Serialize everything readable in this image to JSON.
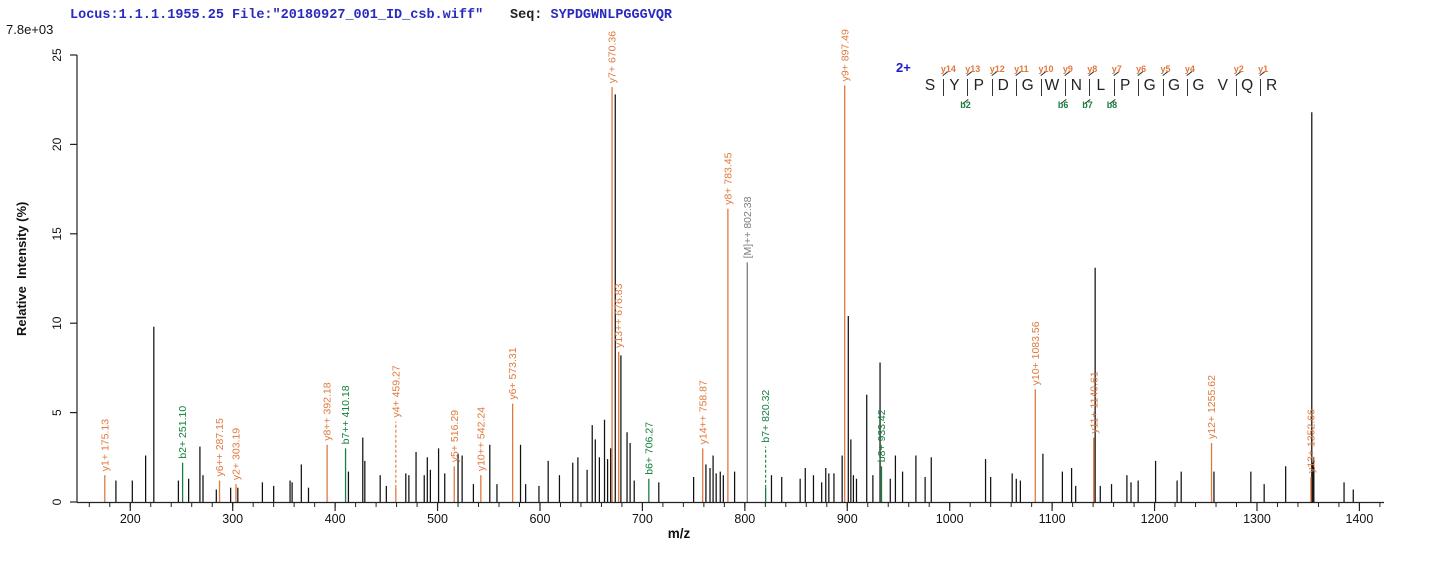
{
  "header": {
    "locus_file": "Locus:1.1.1.1955.25 File:\"20180927_001_ID_csb.wiff\"",
    "seq_label": "Seq: ",
    "seq_value": "SYPDGWNLPGGGVQR",
    "base_peak_intensity": "7.8e+03"
  },
  "peptide": {
    "charge_label": "2+",
    "residues": [
      "S",
      "Y",
      "P",
      "D",
      "G",
      "W",
      "N",
      "L",
      "P",
      "G",
      "G",
      "G",
      "V",
      "Q",
      "R"
    ],
    "gaps": [
      {
        "y": "y14",
        "b": null
      },
      {
        "y": "y13",
        "b": "b2"
      },
      {
        "y": "y12",
        "b": null
      },
      {
        "y": "y11",
        "b": null
      },
      {
        "y": "y10",
        "b": null
      },
      {
        "y": "y9",
        "b": "b6"
      },
      {
        "y": "y8",
        "b": "b7"
      },
      {
        "y": "y7",
        "b": "b8"
      },
      {
        "y": "y6",
        "b": null
      },
      {
        "y": "y5",
        "b": null
      },
      {
        "y": "y4",
        "b": null
      },
      {
        "y": null,
        "b": null
      },
      {
        "y": "y2",
        "b": null
      },
      {
        "y": "y1",
        "b": null
      }
    ]
  },
  "chart_data": {
    "type": "bar",
    "xlabel": "m/z",
    "ylabel": "Relative  Intensity (%)",
    "xlim": [
      148,
      1424
    ],
    "ylim": [
      0,
      25
    ],
    "x_major_ticks": [
      200,
      300,
      400,
      500,
      600,
      700,
      800,
      900,
      1000,
      1100,
      1200,
      1300,
      1400
    ],
    "x_minor_tick_step": 20,
    "y_ticks": [
      0,
      5,
      10,
      15,
      20,
      25
    ],
    "grid": false,
    "colors": {
      "y_ion": "#e0793e",
      "b_ion": "#14803c",
      "precursor": "#7d7d7d",
      "peak": "#111111",
      "axis": "#222222",
      "header_blue": "#2a2ac0"
    },
    "labeled_peaks": [
      {
        "label": "y1+ 175.13",
        "mz": 175.13,
        "intensity": 1.5,
        "type": "y"
      },
      {
        "label": "b2+ 251.10",
        "mz": 251.1,
        "intensity": 2.2,
        "type": "b"
      },
      {
        "label": "y6++ 287.15",
        "mz": 287.15,
        "intensity": 1.2,
        "type": "y"
      },
      {
        "label": "y2+ 303.19",
        "mz": 303.19,
        "intensity": 1.0,
        "type": "y"
      },
      {
        "label": "y8++ 392.18",
        "mz": 392.18,
        "intensity": 3.2,
        "type": "y"
      },
      {
        "label": "b7++ 410.18",
        "mz": 410.18,
        "intensity": 3.0,
        "type": "b"
      },
      {
        "label": "y4+ 459.27",
        "mz": 459.27,
        "intensity": 4.5,
        "type": "y",
        "dashed_leader": true
      },
      {
        "label": "y5+ 516.29",
        "mz": 516.29,
        "intensity": 2.0,
        "type": "y"
      },
      {
        "label": "y10++ 542.24",
        "mz": 542.24,
        "intensity": 1.5,
        "type": "y"
      },
      {
        "label": "y6+ 573.31",
        "mz": 573.31,
        "intensity": 5.5,
        "type": "y"
      },
      {
        "label": "y7+ 670.36",
        "mz": 670.36,
        "intensity": 23.2,
        "type": "y"
      },
      {
        "label": "y13++ 676.83",
        "mz": 676.83,
        "intensity": 8.4,
        "type": "y"
      },
      {
        "label": "b6+ 706.27",
        "mz": 706.27,
        "intensity": 1.3,
        "type": "b"
      },
      {
        "label": "y14++ 758.87",
        "mz": 758.87,
        "intensity": 3.0,
        "type": "y"
      },
      {
        "label": "y8+ 783.45",
        "mz": 783.45,
        "intensity": 16.4,
        "type": "y"
      },
      {
        "label": "[M]++ 802.38",
        "mz": 802.38,
        "intensity": 13.4,
        "type": "precursor"
      },
      {
        "label": "b7+ 820.32",
        "mz": 820.32,
        "intensity": 3.1,
        "type": "b",
        "dashed_leader": true
      },
      {
        "label": "y9+ 897.49",
        "mz": 897.49,
        "intensity": 23.3,
        "type": "y"
      },
      {
        "label": "b8+ 933.42",
        "mz": 933.42,
        "intensity": 2.0,
        "type": "b"
      },
      {
        "label": "y10+ 1083.56",
        "mz": 1083.56,
        "intensity": 6.3,
        "type": "y"
      },
      {
        "label": "y11+ 1140.61",
        "mz": 1140.61,
        "intensity": 3.6,
        "type": "y"
      },
      {
        "label": "y12+ 1255.62",
        "mz": 1255.62,
        "intensity": 3.3,
        "type": "y"
      },
      {
        "label": "y13+ 1352.66",
        "mz": 1352.66,
        "intensity": 1.4,
        "type": "y"
      }
    ],
    "background_peaks": [
      [
        186,
        1.2
      ],
      [
        202,
        1.2
      ],
      [
        215,
        2.6
      ],
      [
        223,
        9.8
      ],
      [
        247,
        1.2
      ],
      [
        257,
        1.3
      ],
      [
        268,
        3.1
      ],
      [
        271,
        1.5
      ],
      [
        284,
        0.7
      ],
      [
        298,
        0.8
      ],
      [
        305,
        0.8
      ],
      [
        329,
        1.1
      ],
      [
        340,
        0.9
      ],
      [
        356,
        1.2
      ],
      [
        358,
        1.1
      ],
      [
        367,
        2.1
      ],
      [
        374,
        0.8
      ],
      [
        413,
        1.7
      ],
      [
        427,
        3.6
      ],
      [
        429,
        2.3
      ],
      [
        444,
        1.5
      ],
      [
        450,
        0.9
      ],
      [
        469,
        1.6
      ],
      [
        472,
        1.5
      ],
      [
        479,
        2.8
      ],
      [
        487,
        1.5
      ],
      [
        490,
        2.5
      ],
      [
        493,
        1.8
      ],
      [
        501,
        3.0
      ],
      [
        507,
        1.6
      ],
      [
        520,
        2.7
      ],
      [
        524,
        2.6
      ],
      [
        535,
        1.0
      ],
      [
        551,
        3.2
      ],
      [
        558,
        1.0
      ],
      [
        581,
        3.2
      ],
      [
        586,
        1.0
      ],
      [
        599,
        0.9
      ],
      [
        608,
        2.3
      ],
      [
        619,
        1.5
      ],
      [
        632,
        2.2
      ],
      [
        637,
        2.5
      ],
      [
        646,
        1.8
      ],
      [
        651,
        4.3
      ],
      [
        654,
        3.5
      ],
      [
        658,
        2.5
      ],
      [
        663,
        4.6
      ],
      [
        666,
        2.4
      ],
      [
        669,
        3.0
      ],
      [
        673.5,
        22.8
      ],
      [
        679,
        8.2
      ],
      [
        685,
        3.9
      ],
      [
        688,
        3.3
      ],
      [
        692,
        1.2
      ],
      [
        716,
        1.1
      ],
      [
        750,
        1.4
      ],
      [
        762,
        2.1
      ],
      [
        766,
        1.9
      ],
      [
        769,
        2.6
      ],
      [
        772,
        1.6
      ],
      [
        776,
        1.7
      ],
      [
        779,
        1.5
      ],
      [
        790,
        1.7
      ],
      [
        826,
        1.5
      ],
      [
        836,
        1.4
      ],
      [
        854,
        1.3
      ],
      [
        859,
        1.9
      ],
      [
        867,
        1.5
      ],
      [
        875,
        1.1
      ],
      [
        879,
        1.9
      ],
      [
        882,
        1.6
      ],
      [
        887,
        1.6
      ],
      [
        895,
        2.6
      ],
      [
        901,
        10.4
      ],
      [
        903.5,
        3.5
      ],
      [
        906,
        1.5
      ],
      [
        909,
        1.3
      ],
      [
        919,
        6.0
      ],
      [
        925,
        1.5
      ],
      [
        932,
        7.8
      ],
      [
        942,
        1.3
      ],
      [
        947,
        2.6
      ],
      [
        954,
        1.7
      ],
      [
        967,
        2.6
      ],
      [
        976,
        1.4
      ],
      [
        982,
        2.5
      ],
      [
        1035,
        2.4
      ],
      [
        1040,
        1.4
      ],
      [
        1061,
        1.6
      ],
      [
        1065,
        1.3
      ],
      [
        1069,
        1.2
      ],
      [
        1091,
        2.7
      ],
      [
        1110,
        1.7
      ],
      [
        1119,
        1.9
      ],
      [
        1123,
        0.9
      ],
      [
        1142,
        13.1
      ],
      [
        1147,
        0.9
      ],
      [
        1158,
        1.0
      ],
      [
        1173,
        1.5
      ],
      [
        1177,
        1.1
      ],
      [
        1184,
        1.2
      ],
      [
        1201,
        2.3
      ],
      [
        1222,
        1.2
      ],
      [
        1226,
        1.7
      ],
      [
        1258,
        1.7
      ],
      [
        1294,
        1.7
      ],
      [
        1307,
        1.0
      ],
      [
        1328,
        2.0
      ],
      [
        1353.5,
        21.8
      ],
      [
        1354.5,
        2.2
      ],
      [
        1355.5,
        2.5
      ],
      [
        1385,
        1.1
      ],
      [
        1394,
        0.7
      ]
    ]
  }
}
